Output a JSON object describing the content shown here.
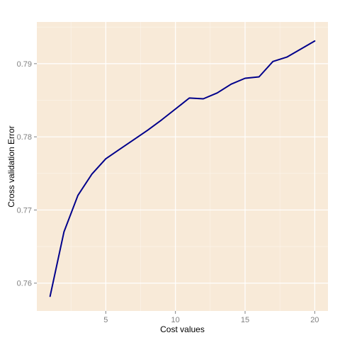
{
  "chart_data": {
    "type": "line",
    "xlabel": "Cost values",
    "ylabel": "Cross validation Error",
    "xlim": [
      0.05,
      20.95
    ],
    "ylim": [
      0.7562,
      0.7957
    ],
    "x_ticks": [
      5,
      10,
      15,
      20
    ],
    "x_tick_labels": [
      "5",
      "10",
      "15",
      "20"
    ],
    "y_ticks": [
      0.76,
      0.77,
      0.78,
      0.79
    ],
    "y_tick_labels": [
      "0.76",
      "0.77",
      "0.78",
      "0.79"
    ],
    "grid": true,
    "colors": {
      "panel_background": "#f8ead8",
      "grid_major": "#ffffff",
      "grid_minor": "#fcf5ec",
      "line": "#00008b"
    },
    "series": [
      {
        "x": [
          1,
          2,
          3,
          4,
          5,
          6,
          7,
          8,
          9,
          10,
          11,
          12,
          13,
          14,
          15,
          16,
          17,
          18,
          19,
          20
        ],
        "values": [
          0.7582,
          0.767,
          0.772,
          0.7749,
          0.777,
          0.7783,
          0.7796,
          0.7809,
          0.7823,
          0.7838,
          0.7853,
          0.7852,
          0.786,
          0.7872,
          0.788,
          0.7882,
          0.7903,
          0.7909,
          0.792,
          0.7931
        ]
      }
    ]
  }
}
